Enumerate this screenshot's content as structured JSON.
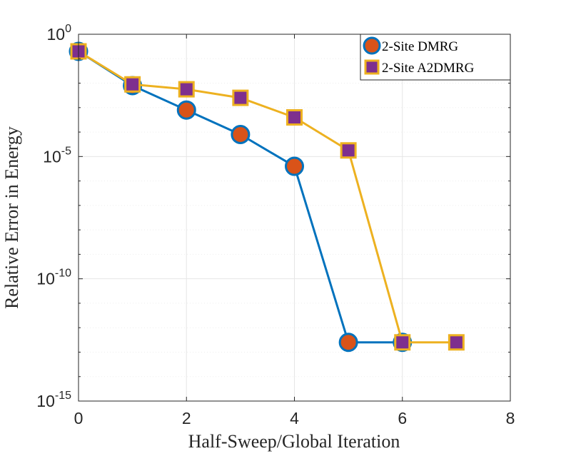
{
  "chart_data": {
    "type": "line",
    "title": "",
    "xlabel": "Half-Sweep/Global Iteration",
    "ylabel": "Relative Error in Energy",
    "xlim": [
      0,
      8
    ],
    "ylim_log10": [
      -15,
      0
    ],
    "yscale": "log",
    "grid": true,
    "legend_position": "top-right",
    "x_ticks": [
      {
        "value": 0,
        "label": "0"
      },
      {
        "value": 2,
        "label": "2"
      },
      {
        "value": 4,
        "label": "4"
      },
      {
        "value": 6,
        "label": "6"
      },
      {
        "value": 8,
        "label": "8"
      }
    ],
    "y_ticks": [
      {
        "exponent": 0,
        "base": "10",
        "exp": "0"
      },
      {
        "exponent": -5,
        "base": "10",
        "exp": "-5"
      },
      {
        "exponent": -10,
        "base": "10",
        "exp": "-10"
      },
      {
        "exponent": -15,
        "base": "10",
        "exp": "-15"
      }
    ],
    "series": [
      {
        "name": "2-Site DMRG",
        "line_color": "#0072BD",
        "marker": "circle",
        "marker_fill": "#D95319",
        "marker_edge": "#0072BD",
        "x": [
          0,
          1,
          2,
          3,
          4,
          5,
          6
        ],
        "log10_values": [
          -0.7,
          -2.1,
          -3.1,
          -4.1,
          -5.4,
          -12.6,
          -12.6
        ]
      },
      {
        "name": "2-Site A2DMRG",
        "line_color": "#EDB120",
        "marker": "square",
        "marker_fill": "#7E2F8E",
        "marker_edge": "#EDB120",
        "x": [
          0,
          1,
          2,
          3,
          4,
          5,
          6,
          7
        ],
        "log10_values": [
          -0.7,
          -2.05,
          -2.25,
          -2.6,
          -3.4,
          -4.75,
          -12.6,
          -12.6
        ]
      }
    ]
  }
}
